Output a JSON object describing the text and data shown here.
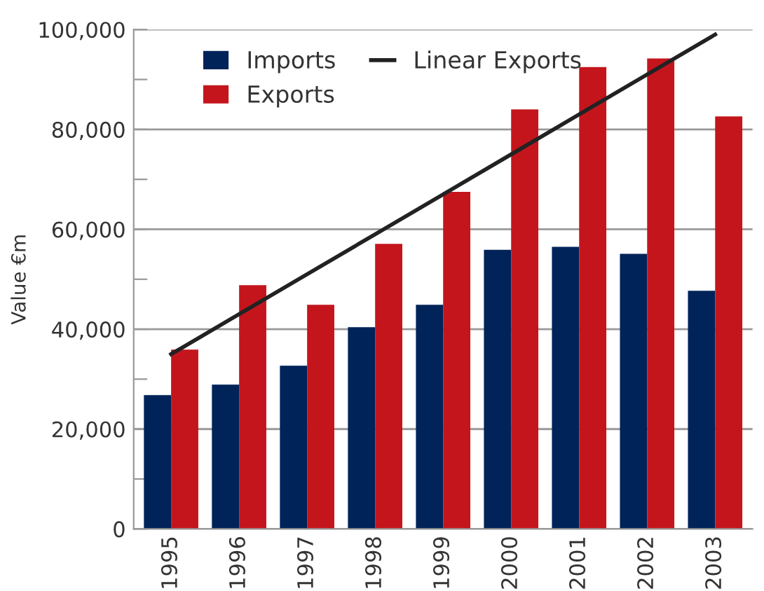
{
  "chart_data": {
    "type": "bar",
    "ylabel": "Value €m",
    "categories": [
      "1995",
      "1996",
      "1997",
      "1998",
      "1999",
      "2000",
      "2001",
      "2002",
      "2003"
    ],
    "series": [
      {
        "name": "Imports",
        "color": "#002359",
        "values": [
          26800,
          28900,
          32700,
          40400,
          44900,
          55900,
          56500,
          55100,
          47700
        ]
      },
      {
        "name": "Exports",
        "color": "#c4151c",
        "values": [
          35900,
          48800,
          44900,
          57100,
          67500,
          84000,
          92500,
          94200,
          82600
        ]
      },
      {
        "name": "Linear Exports",
        "type": "line",
        "color": "#222222",
        "values": [
          35000,
          43000,
          51000,
          59000,
          67000,
          75000,
          83000,
          91000,
          99000
        ]
      }
    ],
    "ylim": [
      0,
      100000
    ],
    "yticks": [
      {
        "value": 0,
        "label": "0"
      },
      {
        "value": 10000,
        "label": null
      },
      {
        "value": 20000,
        "label": "20,000"
      },
      {
        "value": 30000,
        "label": null
      },
      {
        "value": 40000,
        "label": "40,000"
      },
      {
        "value": 50000,
        "label": null
      },
      {
        "value": 60000,
        "label": "60,000"
      },
      {
        "value": 70000,
        "label": null
      },
      {
        "value": 80000,
        "label": "80,000"
      },
      {
        "value": 90000,
        "label": null
      },
      {
        "value": 100000,
        "label": "100,000"
      }
    ],
    "grid": "y",
    "legend": "top left"
  }
}
